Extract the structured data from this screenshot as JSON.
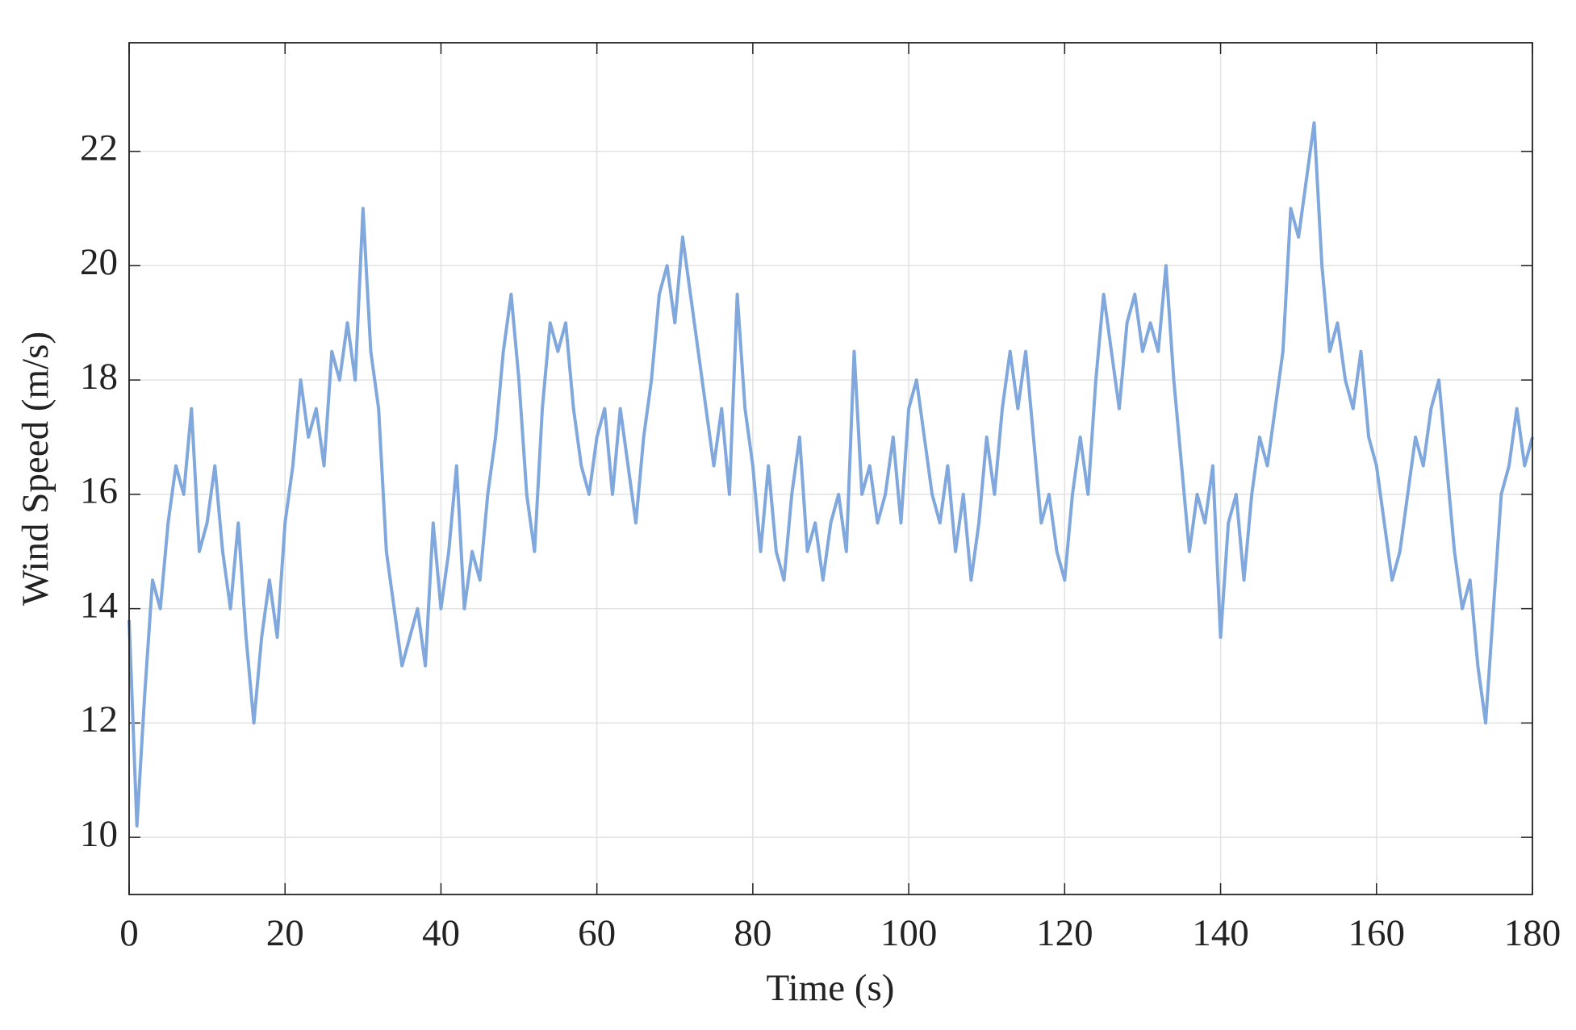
{
  "chart_data": {
    "type": "line",
    "xlabel": "Time (s)",
    "ylabel": "Wind Speed (m/s)",
    "x": [
      0,
      1,
      2,
      3,
      4,
      5,
      6,
      7,
      8,
      9,
      10,
      11,
      12,
      13,
      14,
      15,
      16,
      17,
      18,
      19,
      20,
      21,
      22,
      23,
      24,
      25,
      26,
      27,
      28,
      29,
      30,
      31,
      32,
      33,
      34,
      35,
      36,
      37,
      38,
      39,
      40,
      41,
      42,
      43,
      44,
      45,
      46,
      47,
      48,
      49,
      50,
      51,
      52,
      53,
      54,
      55,
      56,
      57,
      58,
      59,
      60,
      61,
      62,
      63,
      64,
      65,
      66,
      67,
      68,
      69,
      70,
      71,
      72,
      73,
      74,
      75,
      76,
      77,
      78,
      79,
      80,
      81,
      82,
      83,
      84,
      85,
      86,
      87,
      88,
      89,
      90,
      91,
      92,
      93,
      94,
      95,
      96,
      97,
      98,
      99,
      100,
      101,
      102,
      103,
      104,
      105,
      106,
      107,
      108,
      109,
      110,
      111,
      112,
      113,
      114,
      115,
      116,
      117,
      118,
      119,
      120,
      121,
      122,
      123,
      124,
      125,
      126,
      127,
      128,
      129,
      130,
      131,
      132,
      133,
      134,
      135,
      136,
      137,
      138,
      139,
      140,
      141,
      142,
      143,
      144,
      145,
      146,
      147,
      148,
      149,
      150,
      151,
      152,
      153,
      154,
      155,
      156,
      157,
      158,
      159,
      160,
      161,
      162,
      163,
      164,
      165,
      166,
      167,
      168,
      169,
      170,
      171,
      172,
      173,
      174,
      175,
      176,
      177,
      178,
      179,
      180
    ],
    "values": [
      13.8,
      10.2,
      12.5,
      14.5,
      14.0,
      15.5,
      16.5,
      16.0,
      17.5,
      15.0,
      15.5,
      16.5,
      15.0,
      14.0,
      15.5,
      13.5,
      12.0,
      13.5,
      14.5,
      13.5,
      15.5,
      16.5,
      18.0,
      17.0,
      17.5,
      16.5,
      18.5,
      18.0,
      19.0,
      18.0,
      21.0,
      18.5,
      17.5,
      15.0,
      14.0,
      13.0,
      13.5,
      14.0,
      13.0,
      15.5,
      14.0,
      15.0,
      16.5,
      14.0,
      15.0,
      14.5,
      16.0,
      17.0,
      18.5,
      19.5,
      18.0,
      16.0,
      15.0,
      17.5,
      19.0,
      18.5,
      19.0,
      17.5,
      16.5,
      16.0,
      17.0,
      17.5,
      16.0,
      17.5,
      16.5,
      15.5,
      17.0,
      18.0,
      19.5,
      20.0,
      19.0,
      20.5,
      19.5,
      18.5,
      17.5,
      16.5,
      17.5,
      16.0,
      19.5,
      17.5,
      16.5,
      15.0,
      16.5,
      15.0,
      14.5,
      16.0,
      17.0,
      15.0,
      15.5,
      14.5,
      15.5,
      16.0,
      15.0,
      18.5,
      16.0,
      16.5,
      15.5,
      16.0,
      17.0,
      15.5,
      17.5,
      18.0,
      17.0,
      16.0,
      15.5,
      16.5,
      15.0,
      16.0,
      14.5,
      15.5,
      17.0,
      16.0,
      17.5,
      18.5,
      17.5,
      18.5,
      17.0,
      15.5,
      16.0,
      15.0,
      14.5,
      16.0,
      17.0,
      16.0,
      18.0,
      19.5,
      18.5,
      17.5,
      19.0,
      19.5,
      18.5,
      19.0,
      18.5,
      20.0,
      18.0,
      16.5,
      15.0,
      16.0,
      15.5,
      16.5,
      13.5,
      15.5,
      16.0,
      14.5,
      16.0,
      17.0,
      16.5,
      17.5,
      18.5,
      21.0,
      20.5,
      21.5,
      22.5,
      20.0,
      18.5,
      19.0,
      18.0,
      17.5,
      18.5,
      17.0,
      16.5,
      15.5,
      14.5,
      15.0,
      16.0,
      17.0,
      16.5,
      17.5,
      18.0,
      16.5,
      15.0,
      14.0,
      14.5,
      13.0,
      12.0,
      14.0,
      16.0,
      16.5,
      17.5,
      16.5,
      17.0
    ],
    "color": "#80a8dc",
    "xlim": [
      0,
      180
    ],
    "xticks": [
      0,
      20,
      40,
      60,
      80,
      100,
      120,
      140,
      160,
      180
    ],
    "ylim": [
      9,
      23.9
    ],
    "yticks": [
      10,
      12,
      14,
      16,
      18,
      20,
      22
    ],
    "grid": true
  }
}
